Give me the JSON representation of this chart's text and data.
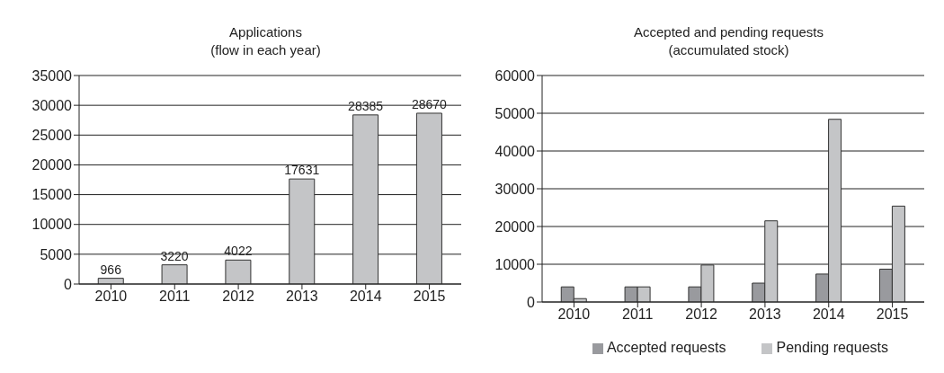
{
  "chart_data": [
    {
      "type": "bar",
      "title": "Applications",
      "subtitle": "(flow in each year)",
      "categories": [
        "2010",
        "2011",
        "2012",
        "2013",
        "2014",
        "2015"
      ],
      "series": [
        {
          "color": "#c4c5c7",
          "values": [
            966,
            3220,
            4022,
            17631,
            28385,
            28670
          ]
        }
      ],
      "ylim": [
        0,
        35000
      ],
      "yticks": [
        0,
        5000,
        10000,
        15000,
        20000,
        25000,
        30000,
        35000
      ],
      "grid": "y",
      "data_labels": true,
      "legend": false
    },
    {
      "type": "bar",
      "title": "Accepted and pending requests",
      "subtitle": "(accumulated stock)",
      "categories": [
        "2010",
        "2011",
        "2012",
        "2013",
        "2014",
        "2015"
      ],
      "series": [
        {
          "name": "Accepted requests",
          "color": "#999a9e",
          "values": [
            4000,
            4000,
            4000,
            5000,
            7400,
            8700
          ]
        },
        {
          "name": "Pending requests",
          "color": "#c4c5c7",
          "values": [
            900,
            4000,
            9800,
            21500,
            48400,
            25400
          ]
        }
      ],
      "ylim": [
        0,
        60000
      ],
      "yticks": [
        0,
        10000,
        20000,
        30000,
        40000,
        50000,
        60000
      ],
      "grid": "y",
      "legend": "bottom right"
    }
  ]
}
